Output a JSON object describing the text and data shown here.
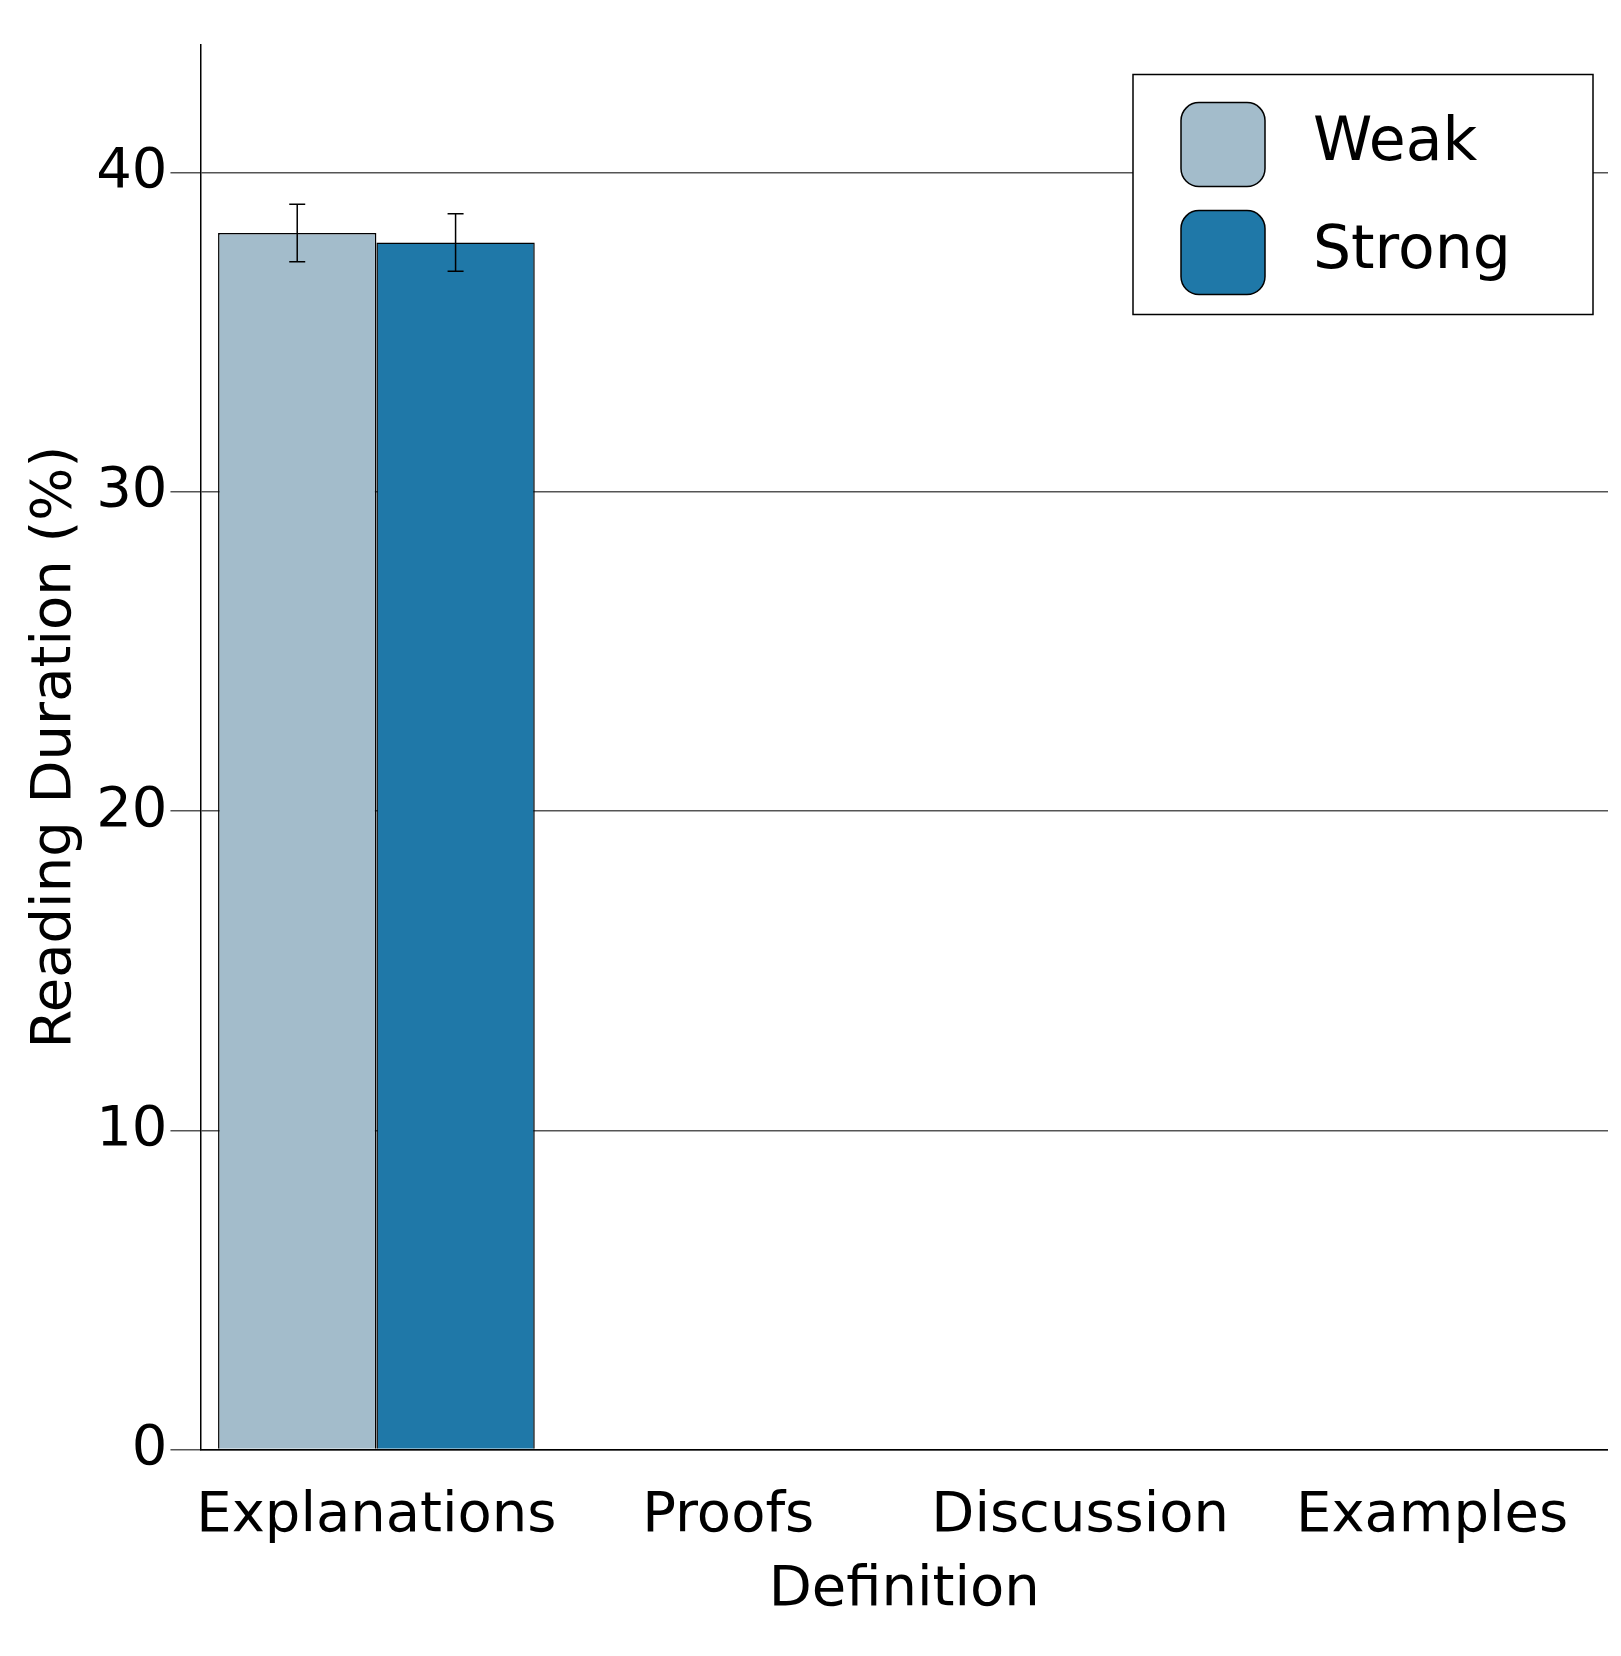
{
  "chart_data": {
    "type": "bar",
    "xlabel": "Definition",
    "ylabel": "Reading Duration (%)",
    "categories": [
      "Explanations",
      "Proofs",
      "Discussion",
      "Examples"
    ],
    "series": [
      {
        "name": "Weak",
        "color": "#a3bccb",
        "values": [
          38.1,
          null,
          null,
          null
        ],
        "errors": [
          0.9,
          null,
          null,
          null
        ]
      },
      {
        "name": "Strong",
        "color": "#1f78a8",
        "values": [
          37.8,
          null,
          null,
          null
        ],
        "errors": [
          0.9,
          null,
          null,
          null
        ]
      }
    ],
    "ylim": [
      0,
      44
    ],
    "yticks": [
      0,
      10,
      20,
      30,
      40
    ],
    "grid": "y",
    "legend": "top right"
  }
}
